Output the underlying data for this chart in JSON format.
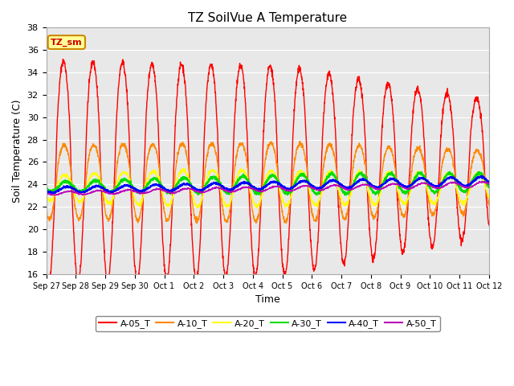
{
  "title": "TZ SoilVue A Temperature",
  "xlabel": "Time",
  "ylabel": "Soil Temperature (C)",
  "ylim": [
    16,
    38
  ],
  "bg_color": "#e8e8e8",
  "fig_color": "#ffffff",
  "grid_color": "#ffffff",
  "series_colors": {
    "A-05_T": "#ff0000",
    "A-10_T": "#ff8800",
    "A-20_T": "#ffff00",
    "A-30_T": "#00dd00",
    "A-40_T": "#0000ff",
    "A-50_T": "#bb00bb"
  },
  "series_lw": {
    "A-05_T": 1.0,
    "A-10_T": 1.0,
    "A-20_T": 1.0,
    "A-30_T": 1.5,
    "A-40_T": 1.5,
    "A-50_T": 1.0
  },
  "tick_labels": [
    "Sep 27",
    "Sep 28",
    "Sep 29",
    "Sep 30",
    "Oct 1",
    "Oct 2",
    "Oct 3",
    "Oct 4",
    "Oct 5",
    "Oct 6",
    "Oct 7",
    "Oct 8",
    "Oct 9",
    "Oct 10",
    "Oct 11",
    "Oct 12"
  ],
  "annotation_text": "TZ_sm",
  "annotation_color": "#cc0000",
  "annotation_bg": "#ffff99",
  "annotation_border": "#cc8800",
  "figsize": [
    6.4,
    4.8
  ],
  "dpi": 100
}
